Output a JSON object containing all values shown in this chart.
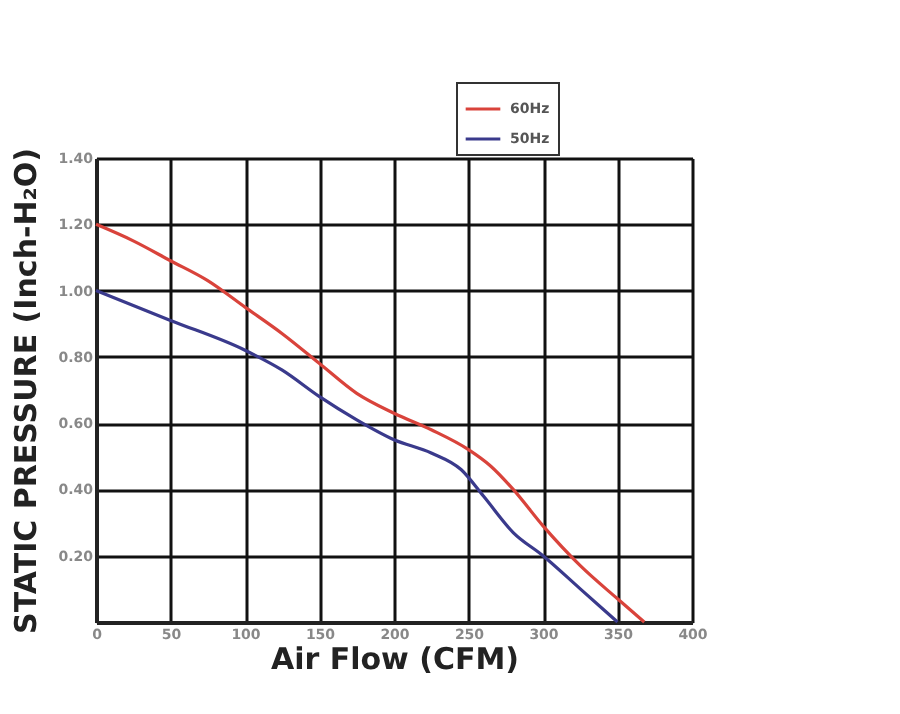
{
  "chart_data": {
    "type": "line",
    "xlabel": "Air Flow (CFM)",
    "ylabel": "STATIC PRESSURE (Inch-H₂O)",
    "xlim": [
      0,
      400
    ],
    "xticks": [
      0,
      50,
      100,
      150,
      200,
      250,
      300,
      350,
      400
    ],
    "ylim": [
      0,
      1.4
    ],
    "yticks": [
      {
        "value": 0.2,
        "label": "0.20"
      },
      {
        "value": 0.4,
        "label": "0.40"
      },
      {
        "value": 0.6,
        "label": "0.60"
      },
      {
        "value": 0.8,
        "label": "0.80"
      },
      {
        "value": 1.0,
        "label": "1.00"
      },
      {
        "value": 1.2,
        "label": "1.20"
      },
      {
        "value": 1.4,
        "label": "1.40"
      }
    ],
    "grid": true,
    "legend": "top right",
    "line_style": "solid",
    "marker": "none",
    "series": [
      {
        "name": "60Hz",
        "color": "#d9433b",
        "x": [
          0,
          25,
          50,
          75,
          100,
          125,
          150,
          175,
          200,
          225,
          250,
          265,
          280,
          300,
          325,
          350,
          368
        ],
        "values": [
          1.2,
          1.15,
          1.09,
          1.03,
          0.95,
          0.87,
          0.78,
          0.69,
          0.63,
          0.58,
          0.52,
          0.47,
          0.4,
          0.29,
          0.17,
          0.07,
          0.0
        ]
      },
      {
        "name": "50Hz",
        "color": "#3a3a8c",
        "x": [
          0,
          50,
          100,
          125,
          150,
          175,
          200,
          225,
          245,
          260,
          280,
          300,
          325,
          350
        ],
        "values": [
          1.0,
          0.91,
          0.82,
          0.76,
          0.68,
          0.61,
          0.55,
          0.51,
          0.46,
          0.38,
          0.27,
          0.2,
          0.1,
          0.0
        ]
      }
    ]
  }
}
